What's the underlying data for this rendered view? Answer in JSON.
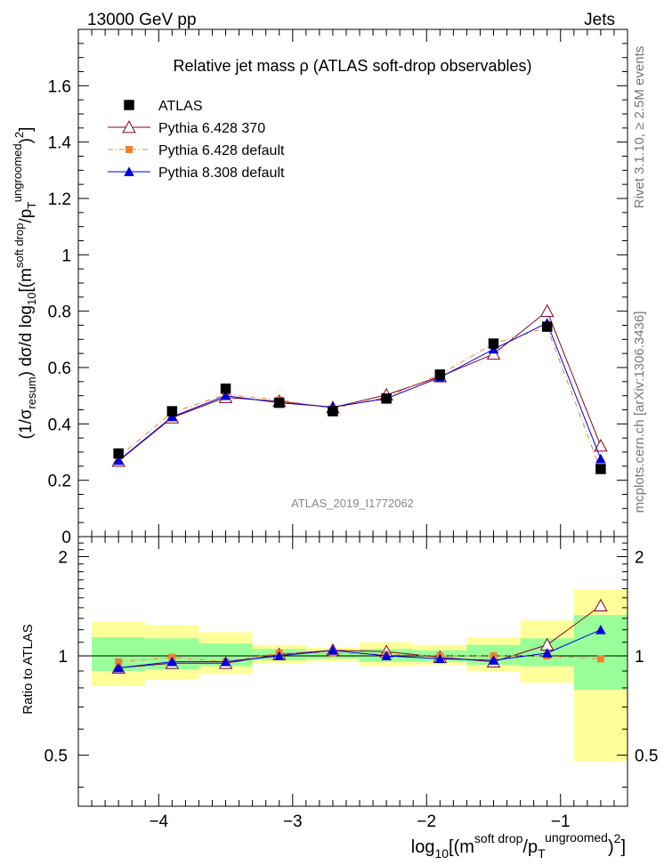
{
  "header": {
    "left": "13000 GeV pp",
    "right": "Jets"
  },
  "side_labels": {
    "rivet": "Rivet 3.1.10, ≥ 2.5M events",
    "mcplots": "mcplots.cern.ch [arXiv:1306.3436]"
  },
  "chart_data": [
    {
      "type": "scatter",
      "role": "main",
      "title": "Relative jet mass  ρ (ATLAS soft-drop observables)",
      "watermark": "ATLAS_2019_I1772062",
      "ylabel_parts": {
        "a": "(1/σ",
        "a_sub": "resum",
        "b": ") dσ/d log",
        "b_sub": "10",
        "c": "[(m",
        "c_sup": "soft drop",
        "d": "/p",
        "d_sub": "T",
        "d_sup": "ungroomed",
        "e": ")",
        "e_sup": "2",
        "f": "]"
      },
      "xlim": [
        -4.6,
        -0.5
      ],
      "ylim": [
        0,
        1.8
      ],
      "yticks": [
        "0",
        "0.2",
        "0.4",
        "0.6",
        "0.8",
        "1",
        "1.2",
        "1.4",
        "1.6"
      ],
      "x": [
        -4.3,
        -3.9,
        -3.5,
        -3.1,
        -2.7,
        -2.3,
        -1.9,
        -1.5,
        -1.1,
        -0.7
      ],
      "series": [
        {
          "name": "ATLAS",
          "color": "#000000",
          "marker": "square",
          "line": "none",
          "values": [
            0.295,
            0.445,
            0.525,
            0.475,
            0.445,
            0.49,
            0.575,
            0.685,
            0.745,
            0.24
          ]
        },
        {
          "name": "Pythia 6.428 370",
          "color": "#800020",
          "marker": "open-triangle",
          "line": "solid",
          "values": [
            0.268,
            0.422,
            0.494,
            0.48,
            0.458,
            0.503,
            0.568,
            0.648,
            0.8,
            0.322
          ]
        },
        {
          "name": "Pythia 6.428 default",
          "color": "#f08030",
          "marker": "square-small",
          "line": "dashdot",
          "values": [
            0.283,
            0.44,
            0.505,
            0.485,
            0.455,
            0.495,
            0.575,
            0.685,
            0.742,
            0.236
          ]
        },
        {
          "name": "Pythia 8.308 default",
          "color": "#0000e0",
          "marker": "filled-triangle",
          "line": "solid",
          "values": [
            0.27,
            0.425,
            0.5,
            0.475,
            0.46,
            0.49,
            0.565,
            0.665,
            0.758,
            0.276
          ]
        }
      ]
    },
    {
      "type": "scatter",
      "role": "ratio",
      "ylabel": "Ratio to ATLAS",
      "xlabel_parts": {
        "a": "log",
        "a_sub": "10",
        "b": "[(m",
        "b_sup": "soft drop",
        "c": "/p",
        "c_sub": "T",
        "c_sup": "ungroomed",
        "d": ")",
        "d_sup": "2",
        "e": "]"
      },
      "xlim": [
        -4.6,
        -0.5
      ],
      "ylim": [
        0.35,
        2.3
      ],
      "ylog": true,
      "yticks": [
        "0.5",
        "1",
        "2"
      ],
      "xticks": [
        "−4",
        "−3",
        "−2",
        "−1"
      ],
      "xtick_values": [
        -4,
        -3,
        -2,
        -1
      ],
      "bins": [
        -4.5,
        -4.1,
        -3.7,
        -3.3,
        -2.9,
        -2.5,
        -2.1,
        -1.7,
        -1.3,
        -0.9,
        -0.5
      ],
      "band_colors": {
        "total": "#ffff99",
        "stat": "#99ff99"
      },
      "band_total": [
        [
          0.81,
          1.27
        ],
        [
          0.85,
          1.24
        ],
        [
          0.88,
          1.18
        ],
        [
          0.95,
          1.08
        ],
        [
          0.96,
          1.06
        ],
        [
          0.93,
          1.1
        ],
        [
          0.94,
          1.08
        ],
        [
          0.9,
          1.14
        ],
        [
          0.83,
          1.28
        ],
        [
          0.48,
          1.59
        ]
      ],
      "band_stat": [
        [
          0.9,
          1.14
        ],
        [
          0.91,
          1.13
        ],
        [
          0.93,
          1.09
        ],
        [
          0.97,
          1.05
        ],
        [
          0.98,
          1.03
        ],
        [
          0.96,
          1.05
        ],
        [
          0.96,
          1.04
        ],
        [
          0.94,
          1.08
        ],
        [
          0.93,
          1.13
        ],
        [
          0.79,
          1.33
        ]
      ],
      "x": [
        -4.3,
        -3.9,
        -3.5,
        -3.1,
        -2.7,
        -2.3,
        -1.9,
        -1.5,
        -1.1,
        -0.7
      ],
      "series": [
        {
          "name": "Pythia 6.428 370",
          "color": "#800020",
          "marker": "open-triangle",
          "line": "solid",
          "values": [
            0.92,
            0.95,
            0.95,
            1.01,
            1.04,
            1.03,
            0.99,
            0.96,
            1.08,
            1.42
          ]
        },
        {
          "name": "Pythia 6.428 default",
          "color": "#f08030",
          "marker": "square-small",
          "line": "dashdot",
          "values": [
            0.96,
            0.99,
            0.96,
            1.02,
            1.02,
            1.01,
            1.0,
            1.0,
            1.0,
            0.98
          ]
        },
        {
          "name": "Pythia 8.308 default",
          "color": "#0000e0",
          "marker": "filled-triangle",
          "line": "solid",
          "values": [
            0.92,
            0.96,
            0.96,
            1.0,
            1.04,
            1.0,
            0.98,
            0.97,
            1.02,
            1.2
          ]
        }
      ]
    }
  ]
}
